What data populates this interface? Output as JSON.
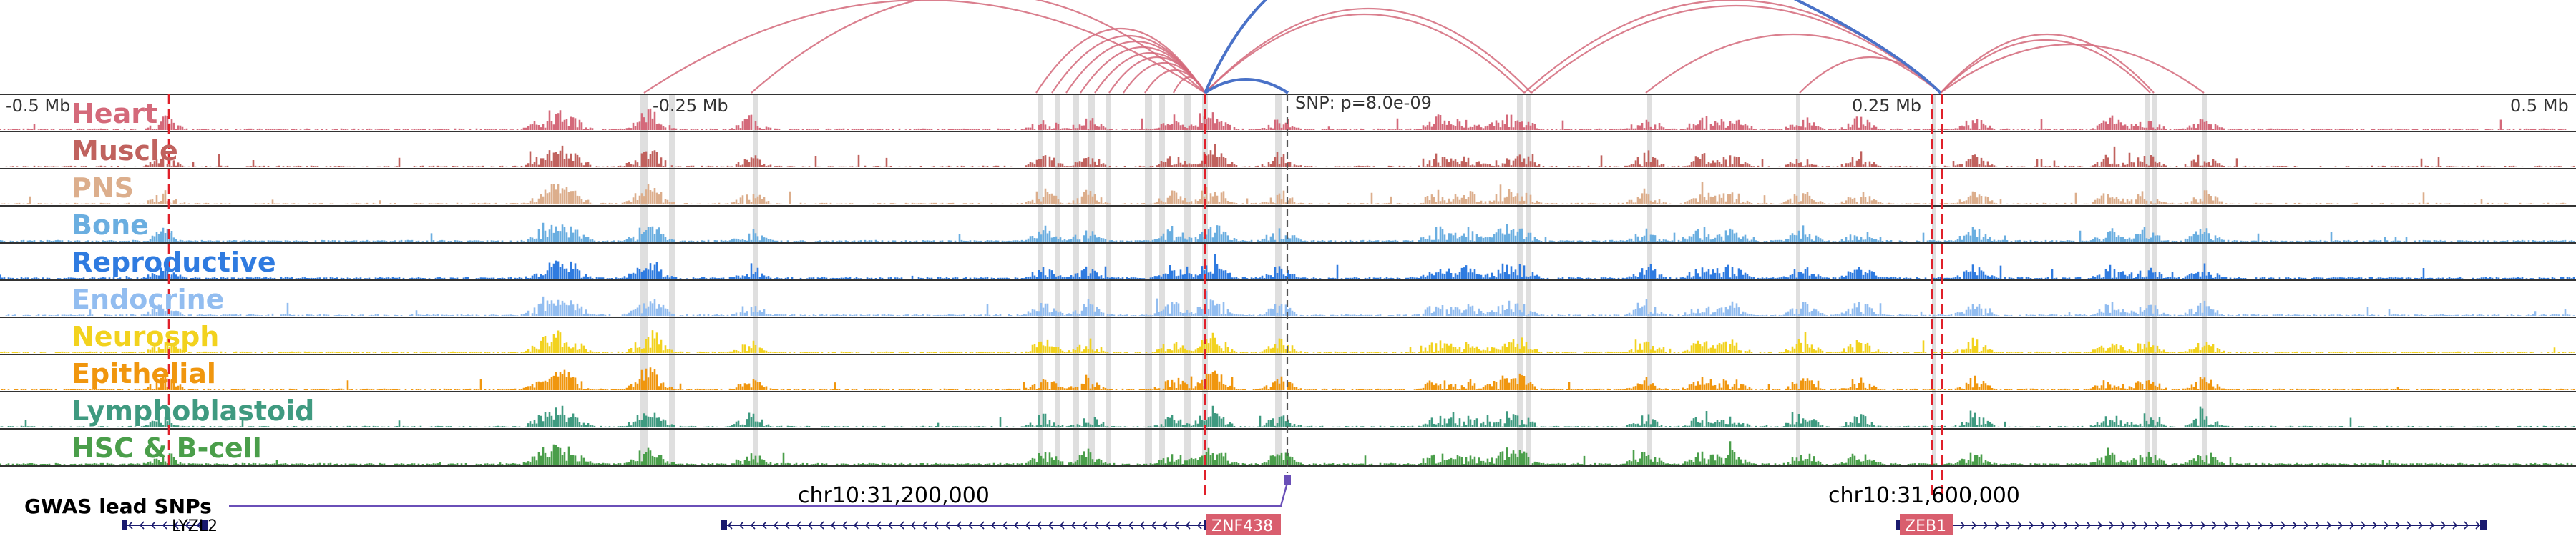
{
  "scale": {
    "left": "-0.5 Mb",
    "left_mid": "-0.25 Mb",
    "right_mid": "0.25 Mb",
    "right": "0.5 Mb"
  },
  "snp_label": "SNP: p=8.0e-09",
  "coords": {
    "a": "chr10:31,200,000",
    "b": "chr10:31,600,000"
  },
  "gwas_label": "GWAS lead SNPs",
  "genes": [
    {
      "name": "LYZL2",
      "strand": "-",
      "highlight": false
    },
    {
      "name": "ZNF438",
      "strand": "-",
      "highlight": true
    },
    {
      "name": "ZEB1",
      "strand": "+",
      "highlight": true
    }
  ],
  "tracks": [
    {
      "name": "Heart",
      "color": "#d4697a"
    },
    {
      "name": "Muscle",
      "color": "#c0625e"
    },
    {
      "name": "PNS",
      "color": "#dcae8c"
    },
    {
      "name": "Bone",
      "color": "#6aaee0"
    },
    {
      "name": "Reproductive",
      "color": "#2f7be0"
    },
    {
      "name": "Endocrine",
      "color": "#92bdf0"
    },
    {
      "name": "Neurosph",
      "color": "#f2d21e"
    },
    {
      "name": "Epithelial",
      "color": "#f0960e"
    },
    {
      "name": "Lymphoblastoid",
      "color": "#3f9a80"
    },
    {
      "name": "HSC & B-cell",
      "color": "#4a9e4a"
    }
  ],
  "colors": {
    "loop_red": "#d4697a",
    "loop_blue": "#4a72c8",
    "snp_purple": "#6a4fb8",
    "gene_navy": "#1a1a6e",
    "gene_box": "#d95e6e"
  },
  "icons": {
    "strand_minus": "chevron-left-icon",
    "strand_plus": "chevron-right-icon"
  }
}
